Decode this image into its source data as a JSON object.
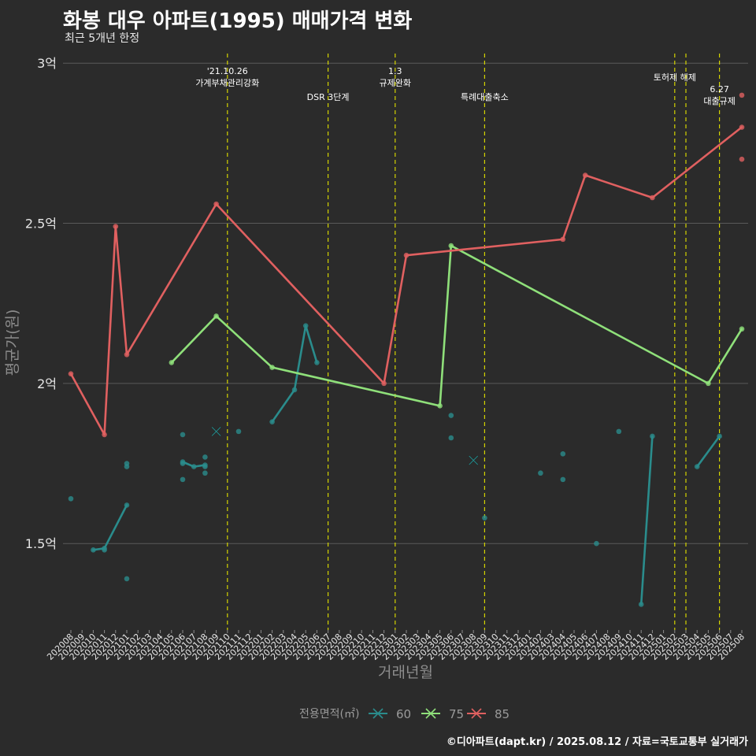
{
  "title": "화봉 대우 아파트(1995) 매매가격 변화",
  "subtitle": "최근 5개년 한정",
  "caption": "©디아파트(dapt.kr) / 2025.08.12 / 자료=국토교통부 실거래가",
  "colors": {
    "s60": "#2a8c8c",
    "s75": "#8fe07a",
    "s85": "#e06060",
    "event": "#d4d400",
    "grid": "#5a5a5a",
    "bg": "#2b2b2b"
  },
  "chart_data": {
    "type": "line",
    "xlabel": "거래년월",
    "ylabel": "평균가(원)",
    "categories": [
      "202008",
      "202009",
      "202010",
      "202011",
      "202012",
      "202101",
      "202102",
      "202103",
      "202104",
      "202105",
      "202106",
      "202107",
      "202108",
      "202109",
      "202110",
      "202111",
      "202112",
      "202201",
      "202202",
      "202203",
      "202204",
      "202205",
      "202206",
      "202207",
      "202208",
      "202209",
      "202210",
      "202211",
      "202212",
      "202301",
      "202302",
      "202303",
      "202304",
      "202305",
      "202306",
      "202307",
      "202308",
      "202309",
      "202310",
      "202311",
      "202312",
      "202401",
      "202402",
      "202403",
      "202404",
      "202405",
      "202406",
      "202407",
      "202408",
      "202409",
      "202410",
      "202411",
      "202412",
      "202501",
      "202502",
      "202503",
      "202504",
      "202505",
      "202506",
      "202507",
      "202508"
    ],
    "ylim": [
      1.23,
      3.03
    ],
    "yticks": [
      {
        "value": 1.5,
        "label": "1.5억"
      },
      {
        "value": 2.0,
        "label": "2억"
      },
      {
        "value": 2.5,
        "label": "2.5억"
      },
      {
        "value": 3.0,
        "label": "3억"
      }
    ],
    "grid": true,
    "legend": {
      "title": "전용면적(㎡)",
      "position": "bottom"
    },
    "events": [
      {
        "x": "202110",
        "lines": [
          "'21.10.26",
          "가계부채관리강화"
        ],
        "row": 1
      },
      {
        "x": "202207",
        "lines": [
          "DSR 3단계"
        ],
        "row": 2
      },
      {
        "x": "202301",
        "lines": [
          "1.3",
          "규제완화"
        ],
        "row": 1
      },
      {
        "x": "202309",
        "lines": [
          "특례대출축소"
        ],
        "row": 2
      },
      {
        "x": "202502",
        "lines": [
          "토허제 해제"
        ],
        "row": 0
      },
      {
        "x": "202503",
        "lines": [],
        "row": 0
      },
      {
        "x": "202506",
        "lines": [
          "6.27",
          "대출규제"
        ],
        "row": 3
      }
    ],
    "series": [
      {
        "name": "60",
        "line_segments": [
          [
            [
              "202010",
              1.48
            ],
            [
              "202011",
              1.485
            ],
            [
              "202101",
              1.62
            ]
          ],
          [
            [
              "202106",
              1.755
            ],
            [
              "202107",
              1.74
            ],
            [
              "202108",
              1.745
            ]
          ],
          [
            [
              "202202",
              1.88
            ],
            [
              "202204",
              1.98
            ],
            [
              "202205",
              2.18
            ],
            [
              "202206",
              2.065
            ]
          ],
          [
            [
              "202411",
              1.31
            ],
            [
              "202412",
              1.835
            ]
          ],
          [
            [
              "202504",
              1.74
            ],
            [
              "202506",
              1.835
            ]
          ]
        ],
        "points": [
          [
            "202008",
            1.64
          ],
          [
            "202011",
            1.48
          ],
          [
            "202101",
            1.39
          ],
          [
            "202101",
            1.75
          ],
          [
            "202101",
            1.74
          ],
          [
            "202106",
            1.84
          ],
          [
            "202106",
            1.75
          ],
          [
            "202106",
            1.7
          ],
          [
            "202108",
            1.77
          ],
          [
            "202108",
            1.74
          ],
          [
            "202108",
            1.72
          ],
          [
            "202111",
            1.85
          ],
          [
            "202306",
            1.9
          ],
          [
            "202306",
            1.83
          ],
          [
            "202309",
            1.58
          ],
          [
            "202402",
            1.72
          ],
          [
            "202404",
            1.78
          ],
          [
            "202404",
            1.7
          ],
          [
            "202407",
            1.5
          ],
          [
            "202409",
            1.85
          ]
        ],
        "crosses": [
          [
            "202109",
            1.85
          ],
          [
            "202308",
            1.76
          ]
        ]
      },
      {
        "name": "75",
        "line": [
          [
            "202105",
            2.065
          ],
          [
            "202109",
            2.21
          ],
          [
            "202202",
            2.05
          ],
          [
            "202305",
            1.93
          ],
          [
            "202306",
            2.43
          ],
          [
            "202505",
            2.0
          ],
          [
            "202508",
            2.17
          ]
        ],
        "points": []
      },
      {
        "name": "85",
        "line": [
          [
            "202008",
            2.03
          ],
          [
            "202011",
            1.84
          ],
          [
            "202012",
            2.49
          ],
          [
            "202101",
            2.09
          ],
          [
            "202109",
            2.56
          ],
          [
            "202212",
            2.0
          ],
          [
            "202302",
            2.4
          ],
          [
            "202404",
            2.45
          ],
          [
            "202406",
            2.65
          ],
          [
            "202412",
            2.58
          ],
          [
            "202508",
            2.8
          ]
        ],
        "points": [
          [
            "202508",
            2.9
          ],
          [
            "202508",
            2.7
          ]
        ]
      }
    ]
  }
}
